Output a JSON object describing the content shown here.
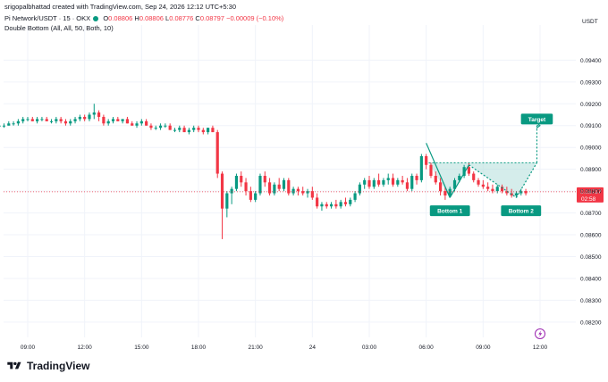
{
  "header": {
    "created_by": "srigopalbhattad created with TradingView.com, Sep 24, 2026 12:12 UTC+5:30"
  },
  "symbol": {
    "name": "Pi Network/USDT · 15 · OKX",
    "o_label": "O",
    "o_val": "0.08806",
    "h_label": "H",
    "h_val": "0.08806",
    "l_label": "L",
    "l_val": "0.08776",
    "c_label": "C",
    "c_val": "0.08797",
    "change": "−0.00009 (−0.10%)"
  },
  "indicator": "Double Bottom (All, All, 50, Both, 10)",
  "brand": {
    "name": "TradingView"
  },
  "colors": {
    "up": "#089981",
    "down": "#f23645",
    "grid": "#f0f3fa",
    "axis_text": "#131722",
    "pattern": "#089981",
    "fill": "#b2dfdb",
    "price_line": "#f23645"
  },
  "chart_data": {
    "type": "candlestick",
    "currency": "USDT",
    "y_ticks": [
      "0.09400",
      "0.09300",
      "0.09200",
      "0.09100",
      "0.09000",
      "0.08900",
      "0.08800",
      "0.08700",
      "0.08600",
      "0.08500",
      "0.08400",
      "0.08300",
      "0.08200"
    ],
    "ylim": [
      0.0813,
      0.0952
    ],
    "x_ticks": [
      "09:00",
      "12:00",
      "15:00",
      "18:00",
      "21:00",
      "24",
      "03:00",
      "06:00",
      "09:00",
      "12:00"
    ],
    "x_tick_times": [
      540,
      720,
      900,
      1080,
      1260,
      1440,
      1620,
      1800,
      1980,
      2160
    ],
    "interval_minutes": 15,
    "first_candle_time": 450,
    "last_price": "0.08797",
    "countdown": "02:58",
    "candles": [
      [
        0.091,
        0.0911,
        0.0909,
        0.091
      ],
      [
        0.091,
        0.0911,
        0.0909,
        0.091
      ],
      [
        0.091,
        0.0912,
        0.091,
        0.0911
      ],
      [
        0.0911,
        0.0912,
        0.091,
        0.0911
      ],
      [
        0.0911,
        0.0913,
        0.091,
        0.0912
      ],
      [
        0.0912,
        0.0914,
        0.0911,
        0.0913
      ],
      [
        0.0913,
        0.0914,
        0.0912,
        0.0913
      ],
      [
        0.0913,
        0.0914,
        0.0912,
        0.0912
      ],
      [
        0.0912,
        0.0914,
        0.0911,
        0.0913
      ],
      [
        0.0913,
        0.0914,
        0.0912,
        0.0913
      ],
      [
        0.0913,
        0.0914,
        0.0912,
        0.0912
      ],
      [
        0.0912,
        0.0913,
        0.0911,
        0.0912
      ],
      [
        0.0912,
        0.0914,
        0.0911,
        0.0913
      ],
      [
        0.0913,
        0.0914,
        0.0911,
        0.0912
      ],
      [
        0.0912,
        0.0913,
        0.091,
        0.0911
      ],
      [
        0.0911,
        0.0913,
        0.091,
        0.0912
      ],
      [
        0.0912,
        0.0914,
        0.0911,
        0.0913
      ],
      [
        0.0913,
        0.0915,
        0.0912,
        0.0914
      ],
      [
        0.0914,
        0.0915,
        0.0912,
        0.0913
      ],
      [
        0.0913,
        0.0916,
        0.0912,
        0.0915
      ],
      [
        0.0915,
        0.092,
        0.0913,
        0.0916
      ],
      [
        0.0916,
        0.0917,
        0.0912,
        0.0914
      ],
      [
        0.0914,
        0.0915,
        0.091,
        0.0911
      ],
      [
        0.0911,
        0.0913,
        0.091,
        0.0912
      ],
      [
        0.0912,
        0.0914,
        0.0911,
        0.0913
      ],
      [
        0.0913,
        0.0914,
        0.0912,
        0.0912
      ],
      [
        0.0912,
        0.0913,
        0.0911,
        0.0913
      ],
      [
        0.0913,
        0.0914,
        0.0911,
        0.0911
      ],
      [
        0.0911,
        0.0912,
        0.091,
        0.091
      ],
      [
        0.091,
        0.0912,
        0.0909,
        0.0911
      ],
      [
        0.0911,
        0.0913,
        0.091,
        0.0912
      ],
      [
        0.0912,
        0.0913,
        0.091,
        0.091
      ],
      [
        0.091,
        0.0911,
        0.0908,
        0.0909
      ],
      [
        0.0909,
        0.091,
        0.0908,
        0.0909
      ],
      [
        0.0909,
        0.0911,
        0.0908,
        0.091
      ],
      [
        0.091,
        0.0911,
        0.0909,
        0.091
      ],
      [
        0.091,
        0.0911,
        0.0908,
        0.0908
      ],
      [
        0.0908,
        0.0909,
        0.0907,
        0.0908
      ],
      [
        0.0908,
        0.091,
        0.0907,
        0.0909
      ],
      [
        0.0909,
        0.091,
        0.0907,
        0.0907
      ],
      [
        0.0907,
        0.0909,
        0.0906,
        0.0908
      ],
      [
        0.0908,
        0.091,
        0.0907,
        0.0909
      ],
      [
        0.0909,
        0.091,
        0.0907,
        0.0908
      ],
      [
        0.0908,
        0.0909,
        0.0906,
        0.0907
      ],
      [
        0.0907,
        0.0909,
        0.0906,
        0.0909
      ],
      [
        0.0909,
        0.091,
        0.0907,
        0.0907
      ],
      [
        0.0907,
        0.0908,
        0.0886,
        0.0888
      ],
      [
        0.0888,
        0.0889,
        0.0858,
        0.0872
      ],
      [
        0.0872,
        0.088,
        0.0868,
        0.0879
      ],
      [
        0.0879,
        0.0882,
        0.0874,
        0.0881
      ],
      [
        0.0881,
        0.0888,
        0.088,
        0.0887
      ],
      [
        0.0887,
        0.0889,
        0.0882,
        0.0884
      ],
      [
        0.0884,
        0.0886,
        0.0878,
        0.088
      ],
      [
        0.088,
        0.0882,
        0.0875,
        0.0876
      ],
      [
        0.0876,
        0.088,
        0.0875,
        0.0879
      ],
      [
        0.0879,
        0.0888,
        0.0878,
        0.0887
      ],
      [
        0.0887,
        0.0889,
        0.0882,
        0.0884
      ],
      [
        0.0884,
        0.0886,
        0.0878,
        0.0879
      ],
      [
        0.0879,
        0.0884,
        0.0878,
        0.0883
      ],
      [
        0.0883,
        0.0886,
        0.088,
        0.0881
      ],
      [
        0.0881,
        0.0886,
        0.088,
        0.0885
      ],
      [
        0.0885,
        0.0886,
        0.0878,
        0.0879
      ],
      [
        0.0879,
        0.0882,
        0.0878,
        0.0881
      ],
      [
        0.0881,
        0.0882,
        0.0878,
        0.088
      ],
      [
        0.088,
        0.0882,
        0.0878,
        0.0879
      ],
      [
        0.0879,
        0.0881,
        0.0877,
        0.088
      ],
      [
        0.088,
        0.0882,
        0.0876,
        0.0877
      ],
      [
        0.0877,
        0.0879,
        0.0872,
        0.0873
      ],
      [
        0.0873,
        0.0875,
        0.0871,
        0.0874
      ],
      [
        0.0874,
        0.0875,
        0.0872,
        0.0873
      ],
      [
        0.0873,
        0.0875,
        0.0872,
        0.0874
      ],
      [
        0.0874,
        0.0876,
        0.0872,
        0.0873
      ],
      [
        0.0873,
        0.0876,
        0.0872,
        0.0875
      ],
      [
        0.0875,
        0.0877,
        0.0873,
        0.0874
      ],
      [
        0.0874,
        0.0877,
        0.0873,
        0.0876
      ],
      [
        0.0876,
        0.088,
        0.0875,
        0.0879
      ],
      [
        0.0879,
        0.0884,
        0.0878,
        0.0883
      ],
      [
        0.0883,
        0.0886,
        0.0881,
        0.0885
      ],
      [
        0.0885,
        0.0887,
        0.0881,
        0.0882
      ],
      [
        0.0882,
        0.0886,
        0.0881,
        0.0885
      ],
      [
        0.0885,
        0.0888,
        0.0882,
        0.0883
      ],
      [
        0.0883,
        0.0886,
        0.0882,
        0.0885
      ],
      [
        0.0885,
        0.0888,
        0.0883,
        0.0886
      ],
      [
        0.0886,
        0.0888,
        0.0882,
        0.0883
      ],
      [
        0.0883,
        0.0886,
        0.0882,
        0.0885
      ],
      [
        0.0885,
        0.0887,
        0.0883,
        0.0884
      ],
      [
        0.0884,
        0.0886,
        0.088,
        0.0881
      ],
      [
        0.0881,
        0.0888,
        0.088,
        0.0887
      ],
      [
        0.0887,
        0.0888,
        0.0883,
        0.0885
      ],
      [
        0.0885,
        0.0897,
        0.0884,
        0.0896
      ],
      [
        0.0896,
        0.0897,
        0.089,
        0.0892
      ],
      [
        0.0892,
        0.0893,
        0.0886,
        0.0887
      ],
      [
        0.0887,
        0.0889,
        0.0883,
        0.0884
      ],
      [
        0.0884,
        0.0886,
        0.0878,
        0.088
      ],
      [
        0.088,
        0.0882,
        0.0876,
        0.0878
      ],
      [
        0.0878,
        0.0882,
        0.0877,
        0.0881
      ],
      [
        0.0881,
        0.0886,
        0.088,
        0.0885
      ],
      [
        0.0885,
        0.0888,
        0.0884,
        0.0887
      ],
      [
        0.0887,
        0.0892,
        0.0886,
        0.0891
      ],
      [
        0.0891,
        0.0893,
        0.0887,
        0.0888
      ],
      [
        0.0888,
        0.0889,
        0.0884,
        0.0885
      ],
      [
        0.0885,
        0.0886,
        0.0882,
        0.0883
      ],
      [
        0.0883,
        0.0885,
        0.0881,
        0.0882
      ],
      [
        0.0882,
        0.0884,
        0.088,
        0.0881
      ],
      [
        0.0881,
        0.0883,
        0.0879,
        0.088
      ],
      [
        0.088,
        0.0883,
        0.0879,
        0.0882
      ],
      [
        0.0882,
        0.0883,
        0.0879,
        0.088
      ],
      [
        0.088,
        0.0882,
        0.0878,
        0.0879
      ],
      [
        0.0879,
        0.0881,
        0.0877,
        0.0878
      ],
      [
        0.0878,
        0.088,
        0.0877,
        0.0879
      ],
      [
        0.0879,
        0.0881,
        0.0878,
        0.088
      ],
      [
        0.088,
        0.0881,
        0.0878,
        0.0879
      ]
    ],
    "pattern": {
      "zigzag": [
        [
          1800,
          0.0902
        ],
        [
          1875,
          0.0877
        ],
        [
          1935,
          0.0892
        ],
        [
          2085,
          0.0877
        ],
        [
          2150,
          0.0893
        ],
        [
          2150,
          0.091
        ],
        [
          2160,
          0.091
        ]
      ],
      "fill_polygon": [
        [
          1808,
          0.0893
        ],
        [
          2150,
          0.0893
        ],
        [
          2085,
          0.0877
        ],
        [
          1935,
          0.0892
        ],
        [
          1875,
          0.0877
        ]
      ],
      "neckline": 0.0893,
      "labels": [
        {
          "text": "Bottom 1",
          "time": 1875,
          "price": 0.0871
        },
        {
          "text": "Bottom 2",
          "time": 2100,
          "price": 0.0871
        },
        {
          "text": "Target",
          "time": 2150,
          "price": 0.0913
        }
      ]
    }
  }
}
